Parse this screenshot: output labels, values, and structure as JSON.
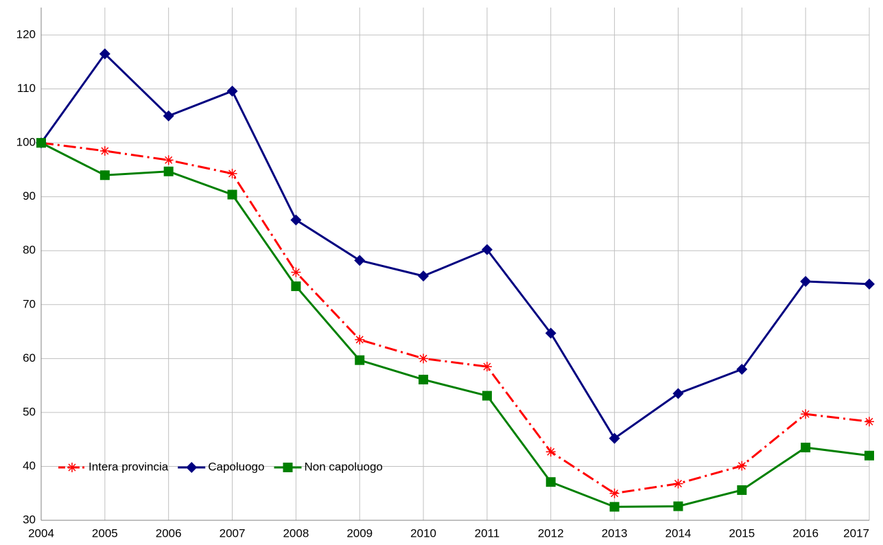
{
  "chart_data": {
    "type": "line",
    "x": [
      2004,
      2005,
      2006,
      2007,
      2008,
      2009,
      2010,
      2011,
      2012,
      2013,
      2014,
      2015,
      2016,
      2017
    ],
    "xlim": [
      2004,
      2017
    ],
    "ylim": [
      30,
      120
    ],
    "yticks": [
      30,
      40,
      50,
      60,
      70,
      80,
      90,
      100,
      110,
      120
    ],
    "grid": true,
    "legend": "lower left",
    "series": [
      {
        "name": "Intera provincia",
        "color": "#ff0000",
        "dash": "dashdot",
        "marker": "asterisk",
        "values": [
          100,
          98.5,
          96.8,
          94.3,
          76,
          63.5,
          60,
          58.5,
          42.7,
          35,
          36.8,
          40.1,
          49.7,
          48.3
        ]
      },
      {
        "name": "Capoluogo",
        "color": "#000080",
        "dash": "solid",
        "marker": "diamond",
        "values": [
          100,
          116.5,
          105,
          109.6,
          85.7,
          78.2,
          75.3,
          80.2,
          64.7,
          45.2,
          53.5,
          58,
          74.3,
          73.8
        ]
      },
      {
        "name": "Non capoluogo",
        "color": "#008000",
        "dash": "solid",
        "marker": "square",
        "values": [
          100,
          94,
          94.7,
          90.4,
          73.4,
          59.7,
          56.1,
          53.1,
          37.1,
          32.5,
          32.6,
          35.6,
          43.5,
          42
        ]
      }
    ]
  }
}
